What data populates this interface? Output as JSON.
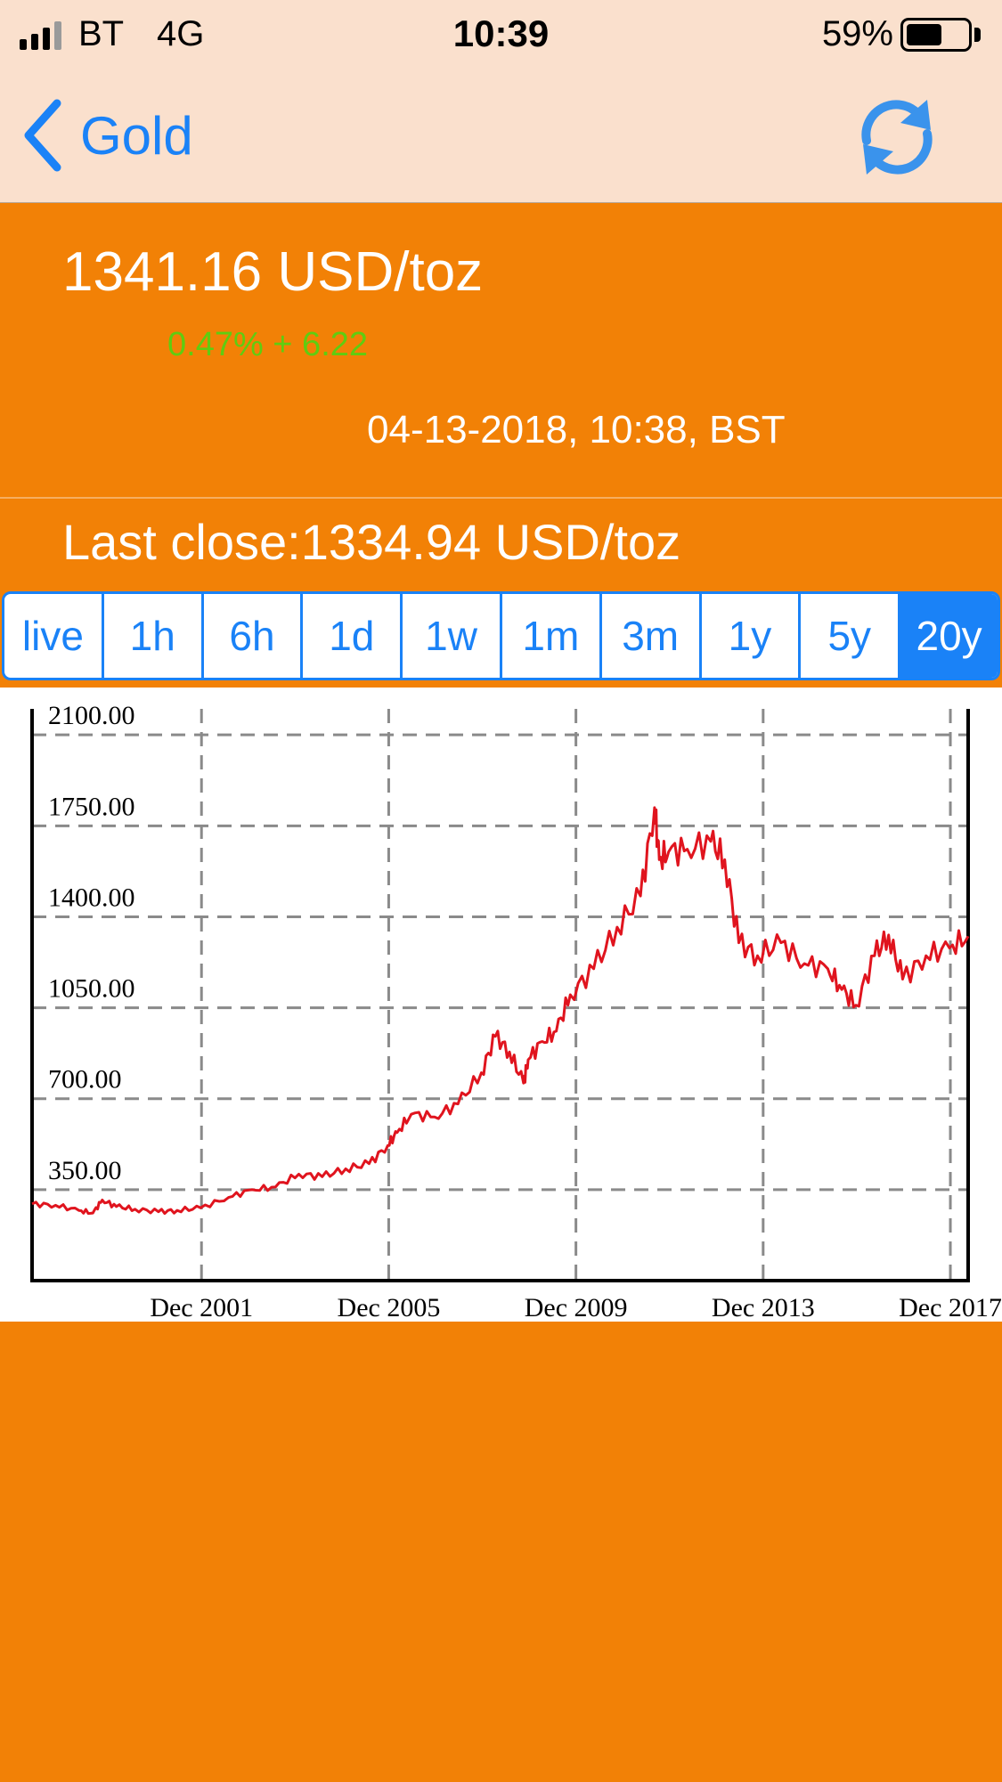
{
  "status_bar": {
    "carrier": "BT",
    "network": "4G",
    "time": "10:39",
    "battery_percent": "59%",
    "battery_level": 0.59
  },
  "nav": {
    "back_label": "Gold",
    "back_icon": "chevron-left-icon",
    "refresh_icon": "refresh-icon",
    "accent_color": "#1a82f7"
  },
  "quote": {
    "price": "1341.16 USD/toz",
    "change": "0.47% + 6.22",
    "timestamp": "04-13-2018, 10:38, BST",
    "last_close": "Last close:1334.94 USD/toz",
    "change_color": "#5fcd10"
  },
  "range_tabs": [
    {
      "label": "live",
      "active": false
    },
    {
      "label": "1h",
      "active": false
    },
    {
      "label": "6h",
      "active": false
    },
    {
      "label": "1d",
      "active": false
    },
    {
      "label": "1w",
      "active": false
    },
    {
      "label": "1m",
      "active": false
    },
    {
      "label": "3m",
      "active": false
    },
    {
      "label": "1y",
      "active": false
    },
    {
      "label": "5y",
      "active": false
    },
    {
      "label": "20y",
      "active": true
    }
  ],
  "chart_data": {
    "type": "line",
    "title": "",
    "xlabel": "",
    "ylabel": "",
    "grid": true,
    "line_color": "#e0141e",
    "y_ticks": [
      "350.00",
      "700.00",
      "1050.00",
      "1400.00",
      "1750.00",
      "2100.00"
    ],
    "y_tick_values": [
      350,
      700,
      1050,
      1400,
      1750,
      2100
    ],
    "x_ticks": [
      "Dec 2001",
      "Dec 2005",
      "Dec 2009",
      "Dec 2013",
      "Dec 2017"
    ],
    "x_tick_values": [
      2001.92,
      2005.92,
      2009.92,
      2013.92,
      2017.92
    ],
    "xlim": [
      1998.3,
      2018.3
    ],
    "ylim": [
      0,
      2200
    ],
    "x": [
      1998.3,
      1998.8,
      1999.3,
      1999.6,
      1999.8,
      2000.1,
      2000.5,
      2001.0,
      2001.4,
      2001.9,
      2002.5,
      2003.0,
      2003.5,
      2004.0,
      2004.5,
      2005.0,
      2005.5,
      2005.9,
      2006.1,
      2006.4,
      2006.9,
      2007.4,
      2007.9,
      2008.2,
      2008.5,
      2008.8,
      2008.9,
      2009.2,
      2009.5,
      2009.8,
      2010.3,
      2010.8,
      2011.3,
      2011.6,
      2011.7,
      2011.9,
      2012.3,
      2012.8,
      2013.1,
      2013.4,
      2013.8,
      2014.3,
      2014.8,
      2015.3,
      2015.6,
      2015.9,
      2016.3,
      2016.6,
      2016.9,
      2017.4,
      2017.9,
      2018.3
    ],
    "values": [
      295,
      290,
      270,
      260,
      310,
      285,
      275,
      265,
      270,
      280,
      320,
      350,
      360,
      410,
      400,
      430,
      450,
      520,
      570,
      640,
      630,
      680,
      800,
      940,
      880,
      760,
      850,
      920,
      960,
      1100,
      1200,
      1360,
      1480,
      1820,
      1620,
      1650,
      1660,
      1690,
      1620,
      1300,
      1250,
      1300,
      1220,
      1200,
      1120,
      1060,
      1250,
      1330,
      1160,
      1250,
      1280,
      1325
    ]
  }
}
